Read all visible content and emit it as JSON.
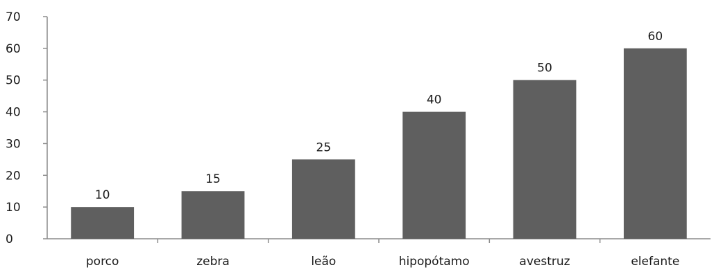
{
  "chart_data": {
    "type": "bar",
    "title": "",
    "xlabel": "",
    "ylabel": "",
    "categories": [
      "porco",
      "zebra",
      "leão",
      "hipopótamo",
      "avestruz",
      "elefante"
    ],
    "values": [
      10,
      15,
      25,
      40,
      50,
      60
    ],
    "data_labels": [
      "10",
      "15",
      "25",
      "40",
      "50",
      "60"
    ],
    "y_ticks": [
      "0",
      "10",
      "20",
      "30",
      "40",
      "50",
      "60",
      "70"
    ],
    "ylim": [
      0,
      70
    ],
    "grid": false,
    "legend": "none",
    "bar_color": "#5f5f5f",
    "axis_color": "#8c8c8c"
  }
}
